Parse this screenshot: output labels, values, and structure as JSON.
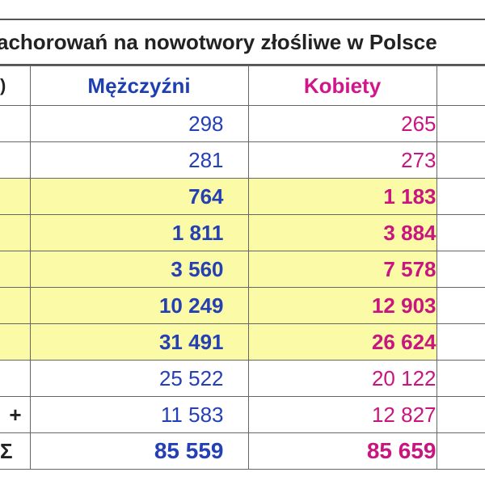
{
  "title": "achorowań na nowotwory złośliwe w Polsce",
  "header": {
    "label_fragment": ")",
    "men": "Mężczyźni",
    "women": "Kobiety"
  },
  "rows": [
    {
      "label": "",
      "men": "298",
      "women": "265",
      "highlight": false,
      "bold": false
    },
    {
      "label": "",
      "men": "281",
      "women": "273",
      "highlight": false,
      "bold": false
    },
    {
      "label": "",
      "men": "764",
      "women": "1 183",
      "highlight": true,
      "bold": true
    },
    {
      "label": "",
      "men": "1 811",
      "women": "3 884",
      "highlight": true,
      "bold": true
    },
    {
      "label": "",
      "men": "3 560",
      "women": "7 578",
      "highlight": true,
      "bold": true
    },
    {
      "label": "",
      "men": "10 249",
      "women": "12 903",
      "highlight": true,
      "bold": true
    },
    {
      "label": "",
      "men": "31 491",
      "women": "26 624",
      "highlight": true,
      "bold": true
    },
    {
      "label": "",
      "men": "25 522",
      "women": "20 122",
      "highlight": false,
      "bold": false
    },
    {
      "label": "+",
      "men": "11 583",
      "women": "12 827",
      "highlight": false,
      "bold": false
    },
    {
      "label": "Σ",
      "men": "85 559",
      "women": "85 659",
      "highlight": false,
      "bold": true,
      "total": true
    }
  ],
  "colors": {
    "men": "#2440b4",
    "women": "#c8157f",
    "highlight": "#fbfaa6",
    "plus": "#e0001a"
  }
}
